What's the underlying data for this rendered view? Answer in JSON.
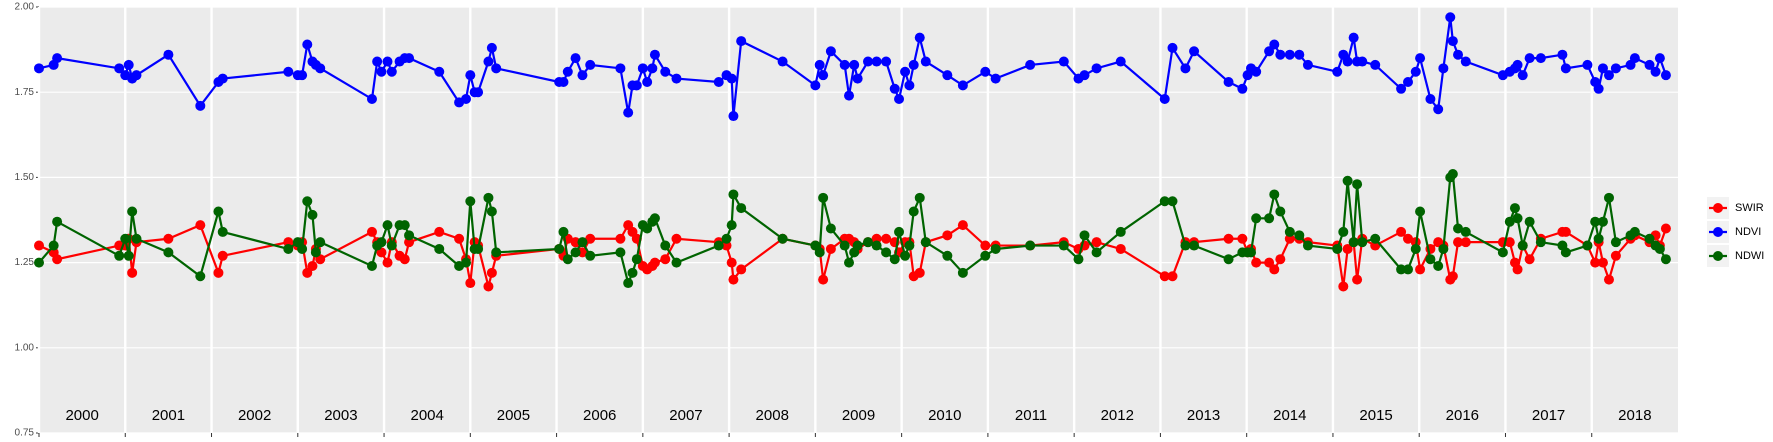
{
  "chart_data": {
    "type": "line",
    "x": [
      2000,
      2000.17,
      2000.21,
      2000.93,
      2001,
      2001.04,
      2001.08,
      2001.13,
      2001.5,
      2001.87,
      2002.08,
      2002.13,
      2002.89,
      2003,
      2003.05,
      2003.11,
      2003.17,
      2003.21,
      2003.26,
      2003.86,
      2003.92,
      2003.97,
      2004.04,
      2004.09,
      2004.18,
      2004.24,
      2004.29,
      2004.64,
      2004.87,
      2004.95,
      2005,
      2005.05,
      2005.09,
      2005.21,
      2005.25,
      2005.3,
      2006.03,
      2006.08,
      2006.13,
      2006.22,
      2006.3,
      2006.39,
      2006.74,
      2006.83,
      2006.88,
      2006.93,
      2007,
      2007.05,
      2007.11,
      2007.14,
      2007.26,
      2007.39,
      2007.88,
      2007.97,
      2008.03,
      2008.05,
      2008.14,
      2008.62,
      2009,
      2009.05,
      2009.09,
      2009.18,
      2009.34,
      2009.39,
      2009.45,
      2009.49,
      2009.61,
      2009.71,
      2009.82,
      2009.92,
      2009.97,
      2010.04,
      2010.09,
      2010.14,
      2010.21,
      2010.28,
      2010.53,
      2010.71,
      2010.97,
      2011.09,
      2011.49,
      2011.88,
      2012.05,
      2012.12,
      2012.26,
      2012.54,
      2013.05,
      2013.14,
      2013.29,
      2013.39,
      2013.79,
      2013.95,
      2014.01,
      2014.05,
      2014.11,
      2014.26,
      2014.32,
      2014.39,
      2014.5,
      2014.61,
      2014.71,
      2015.05,
      2015.12,
      2015.17,
      2015.24,
      2015.28,
      2015.34,
      2015.49,
      2015.79,
      2015.87,
      2015.96,
      2016.01,
      2016.13,
      2016.22,
      2016.28,
      2016.36,
      2016.39,
      2016.45,
      2016.54,
      2016.97,
      2017.05,
      2017.11,
      2017.14,
      2017.2,
      2017.28,
      2017.41,
      2017.66,
      2017.7,
      2017.95,
      2018.04,
      2018.08,
      2018.13,
      2018.2,
      2018.28,
      2018.45,
      2018.5,
      2018.67,
      2018.74,
      2018.79,
      2018.86
    ],
    "series": [
      {
        "name": "SWIR",
        "color": "#ff0000",
        "values": [
          1.3,
          1.28,
          1.26,
          1.3,
          1.3,
          1.32,
          1.22,
          1.31,
          1.32,
          1.36,
          1.22,
          1.27,
          1.31,
          1.3,
          1.31,
          1.22,
          1.24,
          1.29,
          1.26,
          1.34,
          1.31,
          1.28,
          1.25,
          1.31,
          1.27,
          1.26,
          1.31,
          1.34,
          1.32,
          1.26,
          1.19,
          1.31,
          1.3,
          1.18,
          1.22,
          1.27,
          1.29,
          1.27,
          1.32,
          1.31,
          1.28,
          1.32,
          1.32,
          1.36,
          1.34,
          1.32,
          1.24,
          1.23,
          1.24,
          1.25,
          1.26,
          1.32,
          1.31,
          1.3,
          1.25,
          1.2,
          1.23,
          1.32,
          1.3,
          1.29,
          1.2,
          1.29,
          1.32,
          1.32,
          1.31,
          1.29,
          1.31,
          1.32,
          1.32,
          1.31,
          1.28,
          1.31,
          1.31,
          1.21,
          1.22,
          1.31,
          1.33,
          1.36,
          1.3,
          1.3,
          1.3,
          1.31,
          1.29,
          1.3,
          1.31,
          1.29,
          1.21,
          1.21,
          1.31,
          1.31,
          1.32,
          1.32,
          1.28,
          1.29,
          1.25,
          1.25,
          1.23,
          1.26,
          1.32,
          1.32,
          1.31,
          1.3,
          1.18,
          1.29,
          1.31,
          1.2,
          1.32,
          1.3,
          1.34,
          1.32,
          1.31,
          1.23,
          1.29,
          1.31,
          1.3,
          1.2,
          1.21,
          1.31,
          1.31,
          1.31,
          1.31,
          1.25,
          1.23,
          1.3,
          1.26,
          1.32,
          1.34,
          1.34,
          1.3,
          1.25,
          1.31,
          1.25,
          1.2,
          1.27,
          1.32,
          1.33,
          1.31,
          1.33,
          1.3,
          1.35
        ]
      },
      {
        "name": "NDVI",
        "color": "#0000ff",
        "values": [
          1.82,
          1.83,
          1.85,
          1.82,
          1.8,
          1.83,
          1.79,
          1.8,
          1.86,
          1.71,
          1.78,
          1.79,
          1.81,
          1.8,
          1.8,
          1.89,
          1.84,
          1.83,
          1.82,
          1.73,
          1.84,
          1.81,
          1.84,
          1.81,
          1.84,
          1.85,
          1.85,
          1.81,
          1.72,
          1.73,
          1.8,
          1.75,
          1.75,
          1.84,
          1.88,
          1.82,
          1.78,
          1.78,
          1.81,
          1.85,
          1.8,
          1.83,
          1.82,
          1.69,
          1.77,
          1.77,
          1.82,
          1.78,
          1.82,
          1.86,
          1.81,
          1.79,
          1.78,
          1.8,
          1.79,
          1.68,
          1.9,
          1.84,
          1.77,
          1.83,
          1.8,
          1.87,
          1.83,
          1.74,
          1.83,
          1.79,
          1.84,
          1.84,
          1.84,
          1.76,
          1.73,
          1.81,
          1.77,
          1.83,
          1.91,
          1.84,
          1.8,
          1.77,
          1.81,
          1.79,
          1.83,
          1.84,
          1.79,
          1.8,
          1.82,
          1.84,
          1.73,
          1.88,
          1.82,
          1.87,
          1.78,
          1.76,
          1.8,
          1.82,
          1.81,
          1.87,
          1.89,
          1.86,
          1.86,
          1.86,
          1.83,
          1.81,
          1.86,
          1.84,
          1.91,
          1.84,
          1.84,
          1.83,
          1.76,
          1.78,
          1.81,
          1.85,
          1.73,
          1.7,
          1.82,
          1.97,
          1.9,
          1.86,
          1.84,
          1.8,
          1.81,
          1.82,
          1.83,
          1.8,
          1.85,
          1.85,
          1.86,
          1.82,
          1.83,
          1.78,
          1.76,
          1.82,
          1.8,
          1.82,
          1.83,
          1.85,
          1.83,
          1.81,
          1.85,
          1.8
        ]
      },
      {
        "name": "NDWI",
        "color": "#006400",
        "values": [
          1.25,
          1.3,
          1.37,
          1.27,
          1.32,
          1.27,
          1.4,
          1.32,
          1.28,
          1.21,
          1.4,
          1.34,
          1.29,
          1.31,
          1.29,
          1.43,
          1.39,
          1.28,
          1.31,
          1.24,
          1.3,
          1.31,
          1.36,
          1.3,
          1.36,
          1.36,
          1.33,
          1.29,
          1.24,
          1.25,
          1.43,
          1.29,
          1.29,
          1.44,
          1.4,
          1.28,
          1.29,
          1.34,
          1.26,
          1.28,
          1.31,
          1.27,
          1.28,
          1.19,
          1.22,
          1.26,
          1.36,
          1.35,
          1.37,
          1.38,
          1.3,
          1.25,
          1.3,
          1.32,
          1.36,
          1.45,
          1.41,
          1.32,
          1.3,
          1.28,
          1.44,
          1.35,
          1.3,
          1.25,
          1.28,
          1.3,
          1.31,
          1.3,
          1.28,
          1.26,
          1.34,
          1.27,
          1.3,
          1.4,
          1.44,
          1.31,
          1.27,
          1.22,
          1.27,
          1.29,
          1.3,
          1.3,
          1.26,
          1.33,
          1.28,
          1.34,
          1.43,
          1.43,
          1.3,
          1.3,
          1.26,
          1.28,
          1.28,
          1.28,
          1.38,
          1.38,
          1.45,
          1.4,
          1.34,
          1.33,
          1.3,
          1.29,
          1.34,
          1.49,
          1.31,
          1.48,
          1.31,
          1.32,
          1.23,
          1.23,
          1.29,
          1.4,
          1.26,
          1.24,
          1.29,
          1.5,
          1.51,
          1.35,
          1.34,
          1.28,
          1.37,
          1.41,
          1.38,
          1.3,
          1.37,
          1.31,
          1.3,
          1.28,
          1.3,
          1.37,
          1.32,
          1.37,
          1.44,
          1.31,
          1.33,
          1.34,
          1.32,
          1.3,
          1.29,
          1.26
        ]
      }
    ],
    "xlim": [
      2000,
      2019
    ],
    "ylim": [
      0.75,
      2.0
    ],
    "yticks": [
      {
        "value": 0.75,
        "label": "0.75"
      },
      {
        "value": 1.0,
        "label": "1.00"
      },
      {
        "value": 1.25,
        "label": "1.25"
      },
      {
        "value": 1.5,
        "label": "1.50"
      },
      {
        "value": 1.75,
        "label": "1.75"
      },
      {
        "value": 2.0,
        "label": "2.00"
      }
    ],
    "x_breaks": [
      2000,
      2001,
      2002,
      2003,
      2004,
      2005,
      2006,
      2007,
      2008,
      2009,
      2010,
      2011,
      2012,
      2013,
      2014,
      2015,
      2016,
      2017,
      2018
    ],
    "annotations": [
      {
        "x": 2000.5,
        "y": 0.8,
        "text": "2000"
      },
      {
        "x": 2001.5,
        "y": 0.8,
        "text": "2001"
      },
      {
        "x": 2002.5,
        "y": 0.8,
        "text": "2002"
      },
      {
        "x": 2003.5,
        "y": 0.8,
        "text": "2003"
      },
      {
        "x": 2004.5,
        "y": 0.8,
        "text": "2004"
      },
      {
        "x": 2005.5,
        "y": 0.8,
        "text": "2005"
      },
      {
        "x": 2006.5,
        "y": 0.8,
        "text": "2006"
      },
      {
        "x": 2007.5,
        "y": 0.8,
        "text": "2007"
      },
      {
        "x": 2008.5,
        "y": 0.8,
        "text": "2008"
      },
      {
        "x": 2009.5,
        "y": 0.8,
        "text": "2009"
      },
      {
        "x": 2010.5,
        "y": 0.8,
        "text": "2010"
      },
      {
        "x": 2011.5,
        "y": 0.8,
        "text": "2011"
      },
      {
        "x": 2012.5,
        "y": 0.8,
        "text": "2012"
      },
      {
        "x": 2013.5,
        "y": 0.8,
        "text": "2013"
      },
      {
        "x": 2014.5,
        "y": 0.8,
        "text": "2014"
      },
      {
        "x": 2015.5,
        "y": 0.8,
        "text": "2015"
      },
      {
        "x": 2016.5,
        "y": 0.8,
        "text": "2016"
      },
      {
        "x": 2017.5,
        "y": 0.8,
        "text": "2017"
      },
      {
        "x": 2018.5,
        "y": 0.8,
        "text": "2018"
      }
    ],
    "grid": true,
    "legend": "right"
  }
}
